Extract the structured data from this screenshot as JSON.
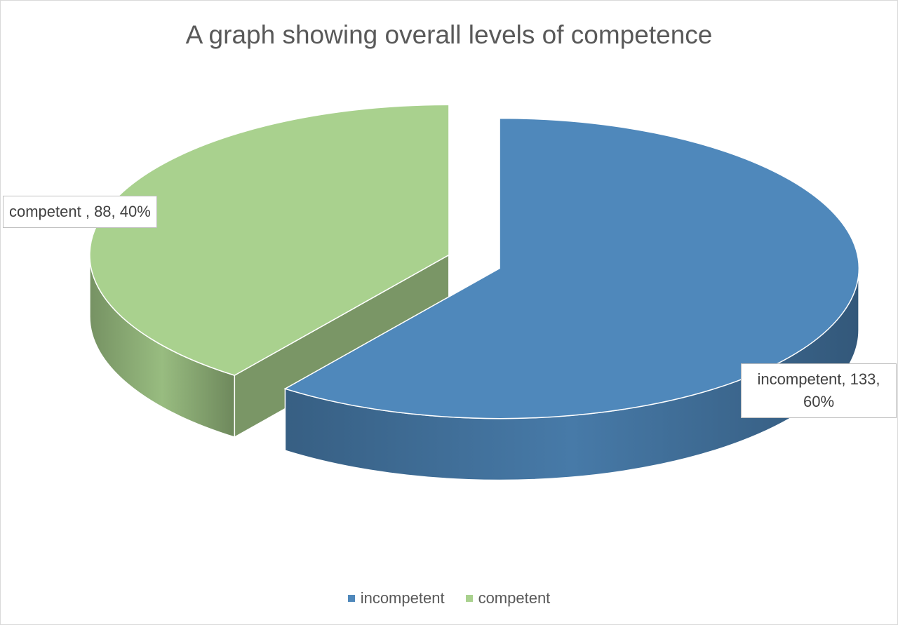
{
  "chart_data": {
    "type": "pie",
    "title": "A graph showing overall levels of competence",
    "categories": [
      "incompetent",
      "competent"
    ],
    "values": [
      133,
      88
    ],
    "value_labels": [
      "incompetent, 133, 60%",
      "competent , 88, 40%"
    ],
    "colors": [
      "#4f88bb",
      "#a9d18e"
    ],
    "legend": "bottom"
  }
}
